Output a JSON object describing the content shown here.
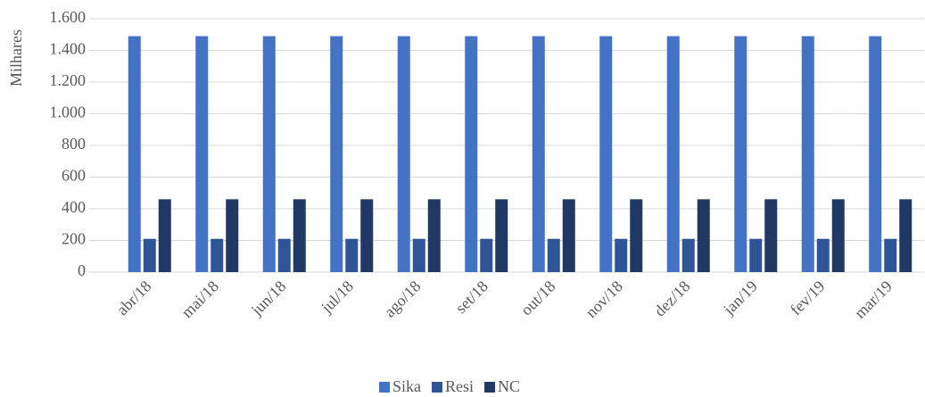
{
  "chart_data": {
    "type": "bar",
    "y_label": "Milhares",
    "categories": [
      "abr/18",
      "mai/18",
      "jun/18",
      "jul/18",
      "ago/18",
      "set/18",
      "out/18",
      "nov/18",
      "dez/18",
      "jan/19",
      "fev/19",
      "mar/19"
    ],
    "series": [
      {
        "name": "Sika",
        "color": "#4472c4",
        "values": [
          1490,
          1490,
          1490,
          1490,
          1490,
          1490,
          1490,
          1490,
          1490,
          1490,
          1490,
          1490
        ]
      },
      {
        "name": "Resi",
        "color": "#2f5597",
        "values": [
          210,
          210,
          210,
          210,
          210,
          210,
          210,
          210,
          210,
          210,
          210,
          210
        ]
      },
      {
        "name": "NC",
        "color": "#203864",
        "values": [
          460,
          460,
          460,
          460,
          460,
          460,
          460,
          460,
          460,
          460,
          460,
          460
        ]
      }
    ],
    "ylim": [
      0,
      1600
    ],
    "yticks": [
      0,
      200,
      400,
      600,
      800,
      {
        "value": 1000,
        "label": "1.000"
      },
      {
        "value": 1200,
        "label": "1.200"
      },
      {
        "value": 1400,
        "label": "1.400"
      },
      {
        "value": 1600,
        "label": "1.600"
      }
    ],
    "grid": true,
    "legend": "bottom"
  }
}
